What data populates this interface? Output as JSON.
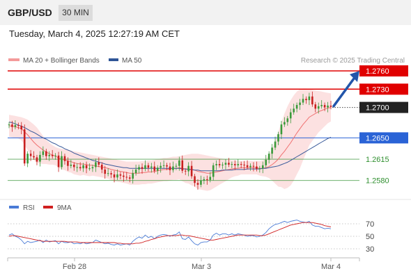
{
  "header": {
    "pair": "GBP/USD",
    "timeframe": "30 MIN",
    "datetime": "Tuesday, March 4, 2025 12:27:19 AM CET"
  },
  "legend": {
    "ma20": "MA 20 + Bollinger Bands",
    "ma50": "MA 50",
    "credit": "Research © 2025 Trading Central"
  },
  "rsi_legend": {
    "rsi": "RSI",
    "ma9": "9MA"
  },
  "colors": {
    "resistance": "#e00000",
    "support": "#2f8f2f",
    "pivot": "#2a63d6",
    "ma20": "#f07070",
    "band_fill": "#fbdcdc",
    "ma50": "#3a5a9a",
    "up": "#3a9a3a",
    "down": "#c81f1f",
    "rsi": "#4a7bd6",
    "rsi_ma": "#d02020",
    "arrow": "#2255aa"
  },
  "chart_data": [
    {
      "type": "candlestick",
      "title": "GBP/USD 30 MIN",
      "x_ticks": [
        "Feb 28",
        "Mar 3",
        "Mar 4"
      ],
      "ylim": [
        1.2555,
        1.278
      ],
      "last_price": 1.27,
      "levels": [
        {
          "label": "1.2760",
          "value": 1.276,
          "kind": "resistance"
        },
        {
          "label": "1.2730",
          "value": 1.273,
          "kind": "resistance"
        },
        {
          "label": "1.2700",
          "value": 1.27,
          "kind": "last"
        },
        {
          "label": "1.2650",
          "value": 1.265,
          "kind": "pivot"
        },
        {
          "label": "1.2615",
          "value": 1.2615,
          "kind": "support"
        },
        {
          "label": "1.2580",
          "value": 1.258,
          "kind": "support"
        }
      ],
      "close": [
        1.2672,
        1.2668,
        1.2671,
        1.267,
        1.2664,
        1.2608,
        1.2624,
        1.262,
        1.2618,
        1.2611,
        1.2622,
        1.2628,
        1.262,
        1.2622,
        1.262,
        1.2621,
        1.2602,
        1.262,
        1.2612,
        1.2604,
        1.2606,
        1.2602,
        1.2602,
        1.26,
        1.2605,
        1.26,
        1.26,
        1.2602,
        1.261,
        1.2606,
        1.2598,
        1.2591,
        1.2592,
        1.259,
        1.2585,
        1.259,
        1.2588,
        1.2586,
        1.2585,
        1.2583,
        1.2592,
        1.2598,
        1.2602,
        1.2599,
        1.2605,
        1.2601,
        1.2603,
        1.2596,
        1.2601,
        1.2604,
        1.2605,
        1.2603,
        1.2597,
        1.2603,
        1.2604,
        1.2613,
        1.2596,
        1.2595,
        1.2604,
        1.2587,
        1.2576,
        1.2573,
        1.258,
        1.2582,
        1.2581,
        1.2586,
        1.2605,
        1.2607,
        1.2605,
        1.2606,
        1.2609,
        1.2606,
        1.2607,
        1.2605,
        1.2607,
        1.2606,
        1.2605,
        1.2602,
        1.2604,
        1.2603,
        1.2599,
        1.26,
        1.2605,
        1.2614,
        1.2624,
        1.2634,
        1.2644,
        1.2656,
        1.2672,
        1.2676,
        1.2682,
        1.2692,
        1.2698,
        1.2704,
        1.2708,
        1.2714,
        1.2712,
        1.2718,
        1.2705,
        1.2698,
        1.2702,
        1.2704,
        1.27,
        1.2703,
        1.2701
      ],
      "ma20": [
        1.267,
        1.2669,
        1.2668,
        1.2667,
        1.2665,
        1.266,
        1.2655,
        1.2649,
        1.2643,
        1.2638,
        1.2634,
        1.263,
        1.2627,
        1.2624,
        1.2622,
        1.262,
        1.2617,
        1.2615,
        1.2614,
        1.2612,
        1.2611,
        1.2609,
        1.2608,
        1.2607,
        1.2607,
        1.2606,
        1.2605,
        1.2605,
        1.2604,
        1.2603,
        1.2602,
        1.2601,
        1.26,
        1.2598,
        1.2597,
        1.2596,
        1.2595,
        1.2594,
        1.2593,
        1.2592,
        1.2592,
        1.2592,
        1.2592,
        1.2593,
        1.2593,
        1.2594,
        1.2594,
        1.2595,
        1.2596,
        1.2597,
        1.2598,
        1.2598,
        1.2599,
        1.26,
        1.26,
        1.2601,
        1.26,
        1.2599,
        1.2599,
        1.2598,
        1.2597,
        1.2595,
        1.2594,
        1.2593,
        1.2592,
        1.2592,
        1.2593,
        1.2594,
        1.2595,
        1.2596,
        1.2597,
        1.2598,
        1.2599,
        1.26,
        1.26,
        1.2601,
        1.2601,
        1.2601,
        1.2601,
        1.2601,
        1.2601,
        1.26,
        1.26,
        1.2601,
        1.2603,
        1.2606,
        1.261,
        1.2615,
        1.2622,
        1.2628,
        1.2635,
        1.2642,
        1.265,
        1.2658,
        1.2665,
        1.2672,
        1.2678,
        1.2684,
        1.2687,
        1.269,
        1.2693,
        1.2695,
        1.2697,
        1.2699,
        1.27
      ],
      "ma50": [
        1.2676,
        1.2675,
        1.2673,
        1.2671,
        1.2669,
        1.2667,
        1.2664,
        1.2661,
        1.2659,
        1.2656,
        1.2653,
        1.265,
        1.2648,
        1.2645,
        1.2642,
        1.264,
        1.2637,
        1.2635,
        1.2632,
        1.263,
        1.2628,
        1.2625,
        1.2623,
        1.2621,
        1.2619,
        1.2617,
        1.2615,
        1.2613,
        1.2612,
        1.261,
        1.2609,
        1.2607,
        1.2606,
        1.2605,
        1.2604,
        1.2603,
        1.2602,
        1.2601,
        1.2601,
        1.26,
        1.26,
        1.26,
        1.26,
        1.26,
        1.26,
        1.26,
        1.26,
        1.26,
        1.26,
        1.26,
        1.26,
        1.26,
        1.26,
        1.26,
        1.26,
        1.26,
        1.2599,
        1.2599,
        1.2598,
        1.2598,
        1.2597,
        1.2597,
        1.2596,
        1.2596,
        1.2596,
        1.2596,
        1.2596,
        1.2596,
        1.2596,
        1.2597,
        1.2597,
        1.2597,
        1.2597,
        1.2598,
        1.2598,
        1.2598,
        1.2598,
        1.2599,
        1.2599,
        1.2599,
        1.2599,
        1.2599,
        1.26,
        1.26,
        1.2601,
        1.2602,
        1.2603,
        1.2604,
        1.2606,
        1.2608,
        1.261,
        1.2613,
        1.2616,
        1.2619,
        1.2622,
        1.2625,
        1.2628,
        1.2631,
        1.2634,
        1.2637,
        1.264,
        1.2643,
        1.2646,
        1.2649,
        1.2651
      ],
      "band_upper": [
        1.2688,
        1.2687,
        1.2686,
        1.2685,
        1.2684,
        1.2682,
        1.268,
        1.2676,
        1.2672,
        1.2667,
        1.266,
        1.2653,
        1.2647,
        1.2642,
        1.2638,
        1.2635,
        1.2633,
        1.2632,
        1.2631,
        1.263,
        1.2629,
        1.2628,
        1.2627,
        1.2626,
        1.2625,
        1.2624,
        1.2623,
        1.2622,
        1.2621,
        1.262,
        1.2619,
        1.2618,
        1.2617,
        1.2616,
        1.2615,
        1.2614,
        1.2613,
        1.2612,
        1.2611,
        1.2611,
        1.2611,
        1.2611,
        1.2611,
        1.2612,
        1.2612,
        1.2613,
        1.2613,
        1.2614,
        1.2615,
        1.2616,
        1.2617,
        1.2617,
        1.2618,
        1.2619,
        1.2619,
        1.262,
        1.2621,
        1.2622,
        1.2623,
        1.2624,
        1.2624,
        1.2624,
        1.2623,
        1.2622,
        1.2621,
        1.262,
        1.2619,
        1.2618,
        1.2617,
        1.2616,
        1.2615,
        1.2614,
        1.2613,
        1.2613,
        1.2612,
        1.2612,
        1.2612,
        1.2612,
        1.2612,
        1.2612,
        1.2612,
        1.2612,
        1.2613,
        1.2616,
        1.2622,
        1.2632,
        1.2645,
        1.266,
        1.2675,
        1.269,
        1.2702,
        1.2712,
        1.272,
        1.2726,
        1.273,
        1.2731,
        1.2731,
        1.273,
        1.2729,
        1.2728,
        1.2727,
        1.2726,
        1.2725,
        1.2724,
        1.2723
      ],
      "band_lower": [
        1.2652,
        1.2651,
        1.265,
        1.2649,
        1.2646,
        1.2638,
        1.263,
        1.2622,
        1.2614,
        1.2609,
        1.2608,
        1.2607,
        1.2607,
        1.2606,
        1.2606,
        1.2605,
        1.2601,
        1.2598,
        1.2597,
        1.2594,
        1.2593,
        1.259,
        1.2589,
        1.2588,
        1.2589,
        1.2588,
        1.2587,
        1.2588,
        1.2587,
        1.2586,
        1.2585,
        1.2584,
        1.2583,
        1.258,
        1.2579,
        1.2578,
        1.2577,
        1.2576,
        1.2575,
        1.2573,
        1.2573,
        1.2573,
        1.2573,
        1.2574,
        1.2574,
        1.2575,
        1.2575,
        1.2576,
        1.2577,
        1.2578,
        1.2579,
        1.2579,
        1.258,
        1.2581,
        1.2581,
        1.2582,
        1.2579,
        1.2576,
        1.2575,
        1.2572,
        1.257,
        1.2566,
        1.2565,
        1.2564,
        1.2563,
        1.2564,
        1.2567,
        1.257,
        1.2573,
        1.2576,
        1.2579,
        1.2582,
        1.2585,
        1.2587,
        1.2588,
        1.259,
        1.259,
        1.259,
        1.259,
        1.259,
        1.259,
        1.2588,
        1.2587,
        1.2586,
        1.2584,
        1.258,
        1.2575,
        1.257,
        1.2569,
        1.2566,
        1.2568,
        1.2572,
        1.258,
        1.259,
        1.26,
        1.2613,
        1.2625,
        1.2638,
        1.2645,
        1.2652,
        1.2659,
        1.2664,
        1.2669,
        1.2674,
        1.2677
      ]
    },
    {
      "type": "line",
      "title": "RSI",
      "ylim": [
        20,
        80
      ],
      "y_ticks": [
        70,
        50,
        30
      ],
      "series": [
        {
          "name": "RSI",
          "values": [
            52,
            54,
            50,
            48,
            44,
            38,
            42,
            40,
            41,
            42,
            44,
            40,
            44,
            41,
            42,
            43,
            38,
            42,
            40,
            40,
            41,
            38,
            39,
            38,
            40,
            38,
            39,
            40,
            44,
            42,
            40,
            38,
            39,
            37,
            36,
            38,
            36,
            37,
            38,
            36,
            42,
            46,
            49,
            47,
            52,
            48,
            50,
            46,
            50,
            52,
            53,
            52,
            50,
            52,
            53,
            57,
            46,
            45,
            49,
            43,
            38,
            36,
            40,
            41,
            41,
            44,
            52,
            55,
            52,
            54,
            54,
            52,
            54,
            52,
            54,
            53,
            52,
            50,
            51,
            51,
            49,
            50,
            52,
            56,
            62,
            66,
            69,
            70,
            72,
            74,
            72,
            74,
            75,
            76,
            74,
            73,
            72,
            74,
            68,
            66,
            66,
            64,
            62,
            63,
            62
          ]
        },
        {
          "name": "9MA",
          "values": [
            50,
            51,
            51,
            50,
            49,
            48,
            47,
            46,
            45,
            44,
            43,
            42,
            42,
            42,
            42,
            42,
            42,
            42,
            42,
            41,
            41,
            41,
            41,
            40,
            40,
            40,
            40,
            40,
            40,
            40,
            40,
            40,
            40,
            40,
            40,
            39,
            39,
            38,
            38,
            38,
            38,
            39,
            39,
            40,
            42,
            43,
            45,
            46,
            48,
            49,
            50,
            51,
            51,
            51,
            51,
            52,
            52,
            51,
            51,
            50,
            49,
            48,
            47,
            46,
            45,
            44,
            44,
            45,
            46,
            47,
            48,
            49,
            50,
            51,
            52,
            52,
            52,
            52,
            52,
            52,
            52,
            51,
            51,
            52,
            54,
            56,
            58,
            60,
            62,
            64,
            66,
            68,
            69,
            70,
            71,
            72,
            72,
            72,
            72,
            71,
            70,
            69,
            67,
            66,
            65
          ]
        }
      ]
    }
  ]
}
